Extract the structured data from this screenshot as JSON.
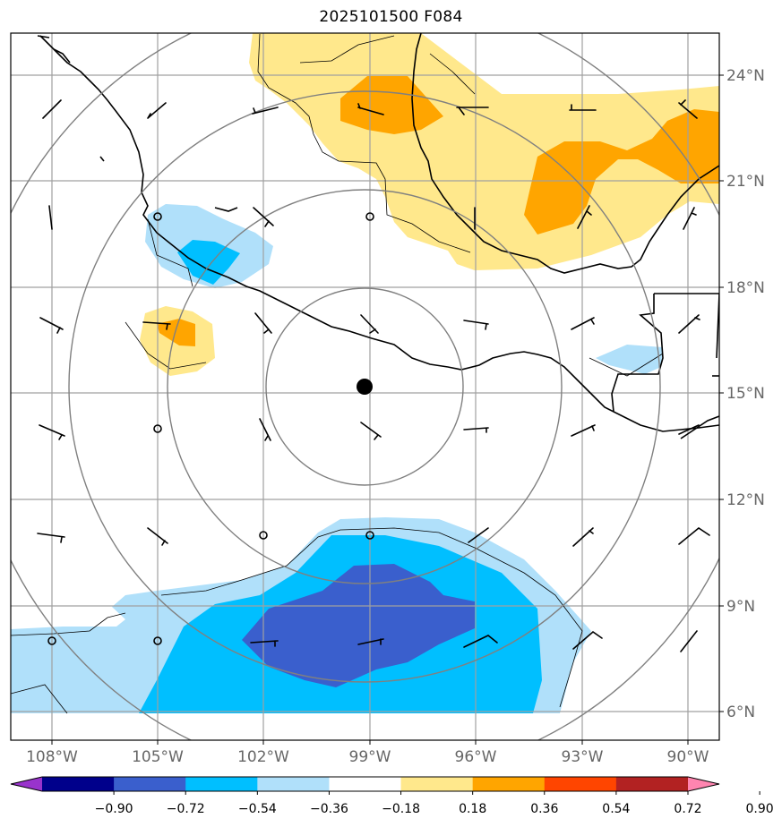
{
  "title": "2025101500 F084",
  "latitude_labels": [
    "24°N",
    "21°N",
    "18°N",
    "15°N",
    "12°N",
    "9°N",
    "6°N"
  ],
  "longitude_labels": [
    "108°W",
    "105°W",
    "102°W",
    "99°W",
    "96°W",
    "93°W",
    "90°W"
  ],
  "colorbar": {
    "levels": [
      "−0.90",
      "−0.72",
      "−0.54",
      "−0.36",
      "−0.18",
      "0.18",
      "0.36",
      "0.54",
      "0.72",
      "0.90"
    ],
    "colors": [
      "#9933cc",
      "#00008b",
      "#3a5fcd",
      "#00bfff",
      "#b0e0fa",
      "#ffffff",
      "#ffe88c",
      "#ffa500",
      "#ff4500",
      "#b22222",
      "#ff85b0"
    ]
  },
  "shading_colors": {
    "light_blue": "#b0e0fa",
    "blue": "#00bfff",
    "dark_blue": "#3a5fcd",
    "light_yellow": "#ffe88c",
    "orange": "#ffa500"
  },
  "center_marker": "storm-center"
}
